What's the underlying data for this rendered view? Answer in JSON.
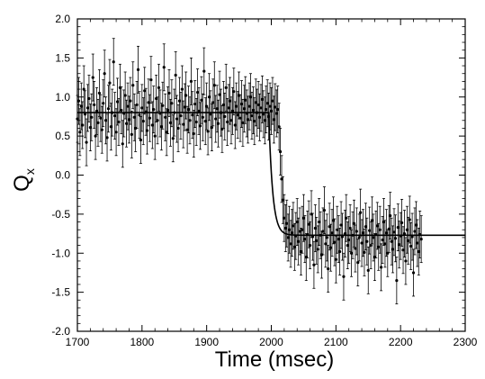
{
  "chart_data": {
    "type": "scatter",
    "title": "",
    "xlabel": "Time (msec)",
    "ylabel_main": "Q",
    "ylabel_sub": "x",
    "xlim": [
      1700,
      2300
    ],
    "ylim": [
      -2.0,
      2.0
    ],
    "xticks": [
      1700,
      1800,
      1900,
      2000,
      2100,
      2200,
      2300
    ],
    "xtick_labels": [
      "1700",
      "1800",
      "1900",
      "2000",
      "2100",
      "2200",
      "2300"
    ],
    "yticks": [
      2.0,
      1.5,
      1.0,
      0.5,
      0.0,
      -0.5,
      -1.0,
      -1.5,
      -2.0
    ],
    "ytick_labels": [
      "2.0",
      "1.5",
      "1.0",
      "0.5",
      "0.0",
      "-0.5",
      "-1.0",
      "-1.5",
      "-2.0"
    ],
    "grid": false,
    "series": [
      {
        "marker": "point-with-errorbars",
        "color": "#000000",
        "x_start": 1700,
        "x_step": 2,
        "y": [
          0.72,
          0.95,
          0.55,
          0.88,
          0.64,
          1.1,
          0.78,
          0.42,
          0.86,
          0.98,
          0.61,
          0.74,
          1.25,
          0.9,
          0.5,
          0.82,
          0.67,
          1.05,
          0.73,
          0.58,
          0.92,
          1.3,
          0.7,
          0.48,
          0.85,
          1.18,
          0.62,
          0.8,
          1.45,
          0.76,
          0.55,
          0.94,
          0.68,
          1.12,
          0.83,
          0.4,
          0.79,
          1.02,
          0.66,
          0.88,
          0.71,
          0.95,
          0.52,
          1.15,
          0.74,
          0.6,
          0.9,
          1.35,
          0.77,
          0.45,
          0.86,
          0.69,
          1.08,
          0.81,
          0.57,
          0.93,
          0.73,
          1.22,
          0.64,
          0.84,
          0.5,
          0.98,
          0.7,
          1.12,
          0.79,
          0.62,
          0.89,
          1.38,
          0.74,
          0.55,
          0.83,
          1.05,
          0.67,
          0.92,
          0.47,
          0.8,
          1.28,
          0.72,
          0.6,
          0.95,
          0.76,
          1.1,
          0.65,
          0.87,
          1.02,
          0.58,
          0.84,
          0.7,
          1.2,
          0.77,
          0.53,
          0.91,
          0.68,
          1.06,
          0.82,
          0.63,
          0.96,
          0.74,
          1.33,
          0.69,
          0.88,
          0.56,
          1.0,
          0.78,
          0.61,
          0.93,
          1.15,
          0.72,
          0.85,
          0.66,
          1.03,
          0.8,
          0.59,
          0.9,
          0.75,
          1.12,
          0.68,
          0.86,
          0.95,
          0.7,
          0.82,
          1.07,
          0.64,
          0.88,
          0.77,
          1.02,
          0.73,
          0.91,
          0.67,
          0.85,
          0.96,
          0.79,
          0.71,
          0.88,
          1.0,
          0.76,
          0.83,
          0.69,
          0.93,
          0.8,
          0.9,
          0.74,
          0.86,
          0.97,
          0.78,
          0.7,
          0.84,
          0.92,
          0.75,
          0.88,
          0.82,
          0.95,
          0.71,
          0.87,
          0.79,
          0.84,
          0.62,
          0.3,
          -0.05,
          -0.32,
          -0.55,
          -0.68,
          -0.62,
          -0.8,
          -0.7,
          -0.88,
          -0.74,
          -0.65,
          -0.92,
          -0.78,
          -0.6,
          -0.85,
          -0.72,
          -0.98,
          -0.7,
          -0.55,
          -0.82,
          -1.05,
          -0.76,
          -0.63,
          -0.9,
          -0.5,
          -0.79,
          -1.15,
          -0.68,
          -0.84,
          -0.95,
          -0.6,
          -0.77,
          -1.02,
          -0.72,
          -0.45,
          -0.88,
          -0.8,
          -1.2,
          -0.66,
          -0.93,
          -0.74,
          -0.58,
          -0.86,
          -1.08,
          -0.7,
          -0.82,
          -0.98,
          -0.64,
          -0.79,
          -1.3,
          -0.75,
          -0.55,
          -0.9,
          -0.83,
          -0.68,
          -1.0,
          -0.77,
          -0.62,
          -0.94,
          -0.72,
          -1.12,
          -0.8,
          -0.48,
          -0.87,
          -0.74,
          -0.99,
          -0.66,
          -0.85,
          -1.22,
          -0.71,
          -0.9,
          -0.58,
          -0.8,
          -1.05,
          -0.76,
          -0.65,
          -0.92,
          -0.7,
          -1.18,
          -0.83,
          -0.6,
          -0.88,
          -0.74,
          -1.0,
          -0.69,
          -0.52,
          -0.85,
          -0.95,
          -0.73,
          -0.81,
          -1.35,
          -0.67,
          -0.89,
          -0.78,
          -0.61,
          -0.96,
          -0.75,
          -1.1,
          -0.7,
          -0.84,
          -0.57,
          -0.91,
          -0.79,
          -1.25,
          -0.72,
          -0.64,
          -0.87,
          -0.98,
          -0.76,
          -0.82
        ]
      }
    ],
    "error_half_width": 0.3,
    "fit_curve": {
      "color": "#000000",
      "y_before": 0.8,
      "y_after": -0.77,
      "x_start": 1996,
      "tau": 6
    }
  }
}
